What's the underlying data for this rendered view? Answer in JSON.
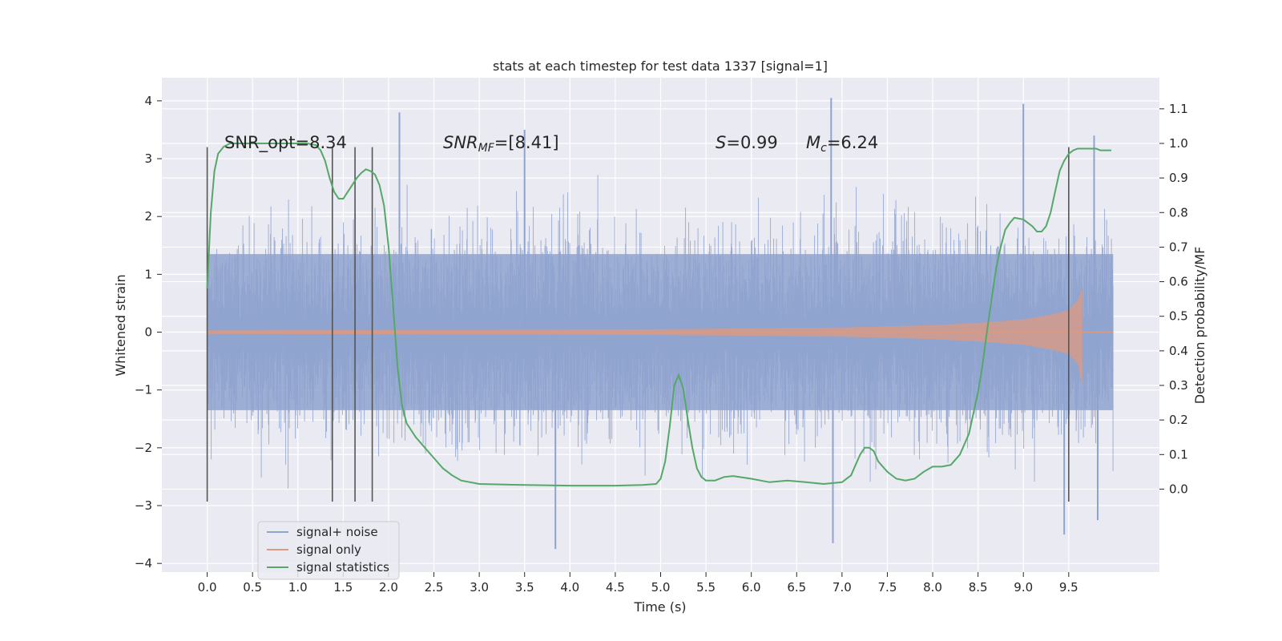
{
  "chart_data": {
    "type": "line",
    "title": "stats at each timestep for test data 1337 [signal=1]",
    "xlabel": "Time (s)",
    "ylabel": "Whitened strain",
    "ylabel_right": "Detection probability/MF",
    "xlim": [
      -0.5,
      10.5
    ],
    "ylim": [
      -4.15,
      4.4
    ],
    "ylim_right": [
      -0.24,
      1.19
    ],
    "x_ticks": [
      "0.0",
      "0.5",
      "1.0",
      "1.5",
      "2.0",
      "2.5",
      "3.0",
      "3.5",
      "4.0",
      "4.5",
      "5.0",
      "5.5",
      "6.0",
      "6.5",
      "7.0",
      "7.5",
      "8.0",
      "8.5",
      "9.0",
      "9.5"
    ],
    "y_ticks": [
      "4",
      "3",
      "2",
      "1",
      "0",
      "−1",
      "−2",
      "−3",
      "−4"
    ],
    "y_right_ticks": [
      "1.1",
      "1.0",
      "0.9",
      "0.8",
      "0.7",
      "0.6",
      "0.5",
      "0.4",
      "0.3",
      "0.2",
      "0.1",
      "0.0"
    ],
    "annotations": {
      "snr_opt": "SNR_opt=8.34",
      "snr_mf_name": "SNR",
      "snr_mf_sub": "MF",
      "snr_mf_value": "=[8.41]",
      "s_name": "S",
      "s_value": "=0.99",
      "mc_name": "M",
      "mc_sub": "c",
      "mc_value": "=6.24"
    },
    "legend": {
      "position": "lower-left",
      "entries": [
        "signal+ noise",
        "signal only",
        "signal statistics"
      ]
    },
    "colors": {
      "noise": "#8fa3cf",
      "signal": "#d99a84",
      "stats": "#55a868",
      "vline": "#555555",
      "background": "#eaeaf2",
      "grid": "#ffffff"
    },
    "series": [
      {
        "name": "signal+ noise",
        "axis": "left",
        "x_range": [
          0.0,
          9.99
        ],
        "band": [
          -1.35,
          1.35
        ],
        "notable_peaks": [
          {
            "x": 2.12,
            "y": 3.8
          },
          {
            "x": 6.88,
            "y": 4.05
          },
          {
            "x": 9.0,
            "y": 3.95
          },
          {
            "x": 3.84,
            "y": -3.75
          },
          {
            "x": 6.9,
            "y": -3.65
          },
          {
            "x": 9.82,
            "y": -3.25
          },
          {
            "x": 9.45,
            "y": -3.5
          },
          {
            "x": 3.5,
            "y": 3.5
          },
          {
            "x": 9.78,
            "y": 3.4
          }
        ]
      },
      {
        "name": "signal only",
        "axis": "left",
        "x_range": [
          0.0,
          9.99
        ],
        "peak_x": 9.65,
        "peak_amplitude": 0.75,
        "envelope": [
          [
            0.0,
            0.03
          ],
          [
            5.0,
            0.05
          ],
          [
            7.0,
            0.08
          ],
          [
            8.0,
            0.12
          ],
          [
            8.5,
            0.16
          ],
          [
            9.0,
            0.22
          ],
          [
            9.3,
            0.3
          ],
          [
            9.5,
            0.38
          ],
          [
            9.6,
            0.55
          ],
          [
            9.65,
            0.75
          ]
        ]
      },
      {
        "name": "signal statistics",
        "axis": "right",
        "x": [
          0.0,
          0.04,
          0.08,
          0.12,
          0.18,
          0.25,
          0.4,
          0.6,
          0.8,
          1.0,
          1.1,
          1.2,
          1.25,
          1.3,
          1.35,
          1.4,
          1.45,
          1.5,
          1.55,
          1.6,
          1.65,
          1.7,
          1.75,
          1.8,
          1.85,
          1.9,
          1.95,
          2.0,
          2.05,
          2.1,
          2.15,
          2.2,
          2.3,
          2.4,
          2.5,
          2.6,
          2.7,
          2.8,
          3.0,
          3.5,
          4.0,
          4.5,
          4.8,
          4.95,
          5.0,
          5.05,
          5.1,
          5.15,
          5.2,
          5.25,
          5.3,
          5.35,
          5.4,
          5.45,
          5.5,
          5.6,
          5.7,
          5.8,
          6.0,
          6.2,
          6.4,
          6.6,
          6.8,
          7.0,
          7.1,
          7.15,
          7.2,
          7.25,
          7.3,
          7.35,
          7.4,
          7.5,
          7.6,
          7.7,
          7.8,
          7.9,
          8.0,
          8.1,
          8.2,
          8.3,
          8.4,
          8.5,
          8.55,
          8.6,
          8.65,
          8.7,
          8.75,
          8.8,
          8.85,
          8.9,
          9.0,
          9.05,
          9.1,
          9.15,
          9.2,
          9.25,
          9.3,
          9.35,
          9.4,
          9.45,
          9.5,
          9.55,
          9.6,
          9.7,
          9.8,
          9.85,
          9.9,
          9.97
        ],
        "y": [
          0.58,
          0.8,
          0.92,
          0.97,
          0.99,
          1.0,
          1.0,
          1.0,
          1.0,
          1.0,
          1.0,
          0.995,
          0.98,
          0.95,
          0.9,
          0.86,
          0.84,
          0.84,
          0.86,
          0.88,
          0.9,
          0.915,
          0.925,
          0.92,
          0.91,
          0.88,
          0.82,
          0.7,
          0.53,
          0.35,
          0.24,
          0.19,
          0.15,
          0.12,
          0.09,
          0.06,
          0.04,
          0.025,
          0.015,
          0.012,
          0.01,
          0.01,
          0.012,
          0.015,
          0.03,
          0.08,
          0.18,
          0.3,
          0.33,
          0.29,
          0.2,
          0.12,
          0.06,
          0.035,
          0.025,
          0.025,
          0.035,
          0.038,
          0.03,
          0.02,
          0.025,
          0.02,
          0.015,
          0.02,
          0.04,
          0.07,
          0.1,
          0.12,
          0.12,
          0.11,
          0.08,
          0.05,
          0.03,
          0.025,
          0.03,
          0.05,
          0.065,
          0.065,
          0.07,
          0.1,
          0.16,
          0.28,
          0.36,
          0.46,
          0.55,
          0.64,
          0.7,
          0.75,
          0.77,
          0.785,
          0.78,
          0.77,
          0.76,
          0.745,
          0.745,
          0.76,
          0.8,
          0.86,
          0.92,
          0.95,
          0.97,
          0.98,
          0.985,
          0.985,
          0.985,
          0.98,
          0.98,
          0.98
        ]
      }
    ],
    "vertical_lines": {
      "x": [
        0.0,
        1.38,
        1.63,
        1.82,
        9.5
      ],
      "y_from": -2.93,
      "y_to": 3.2
    }
  }
}
